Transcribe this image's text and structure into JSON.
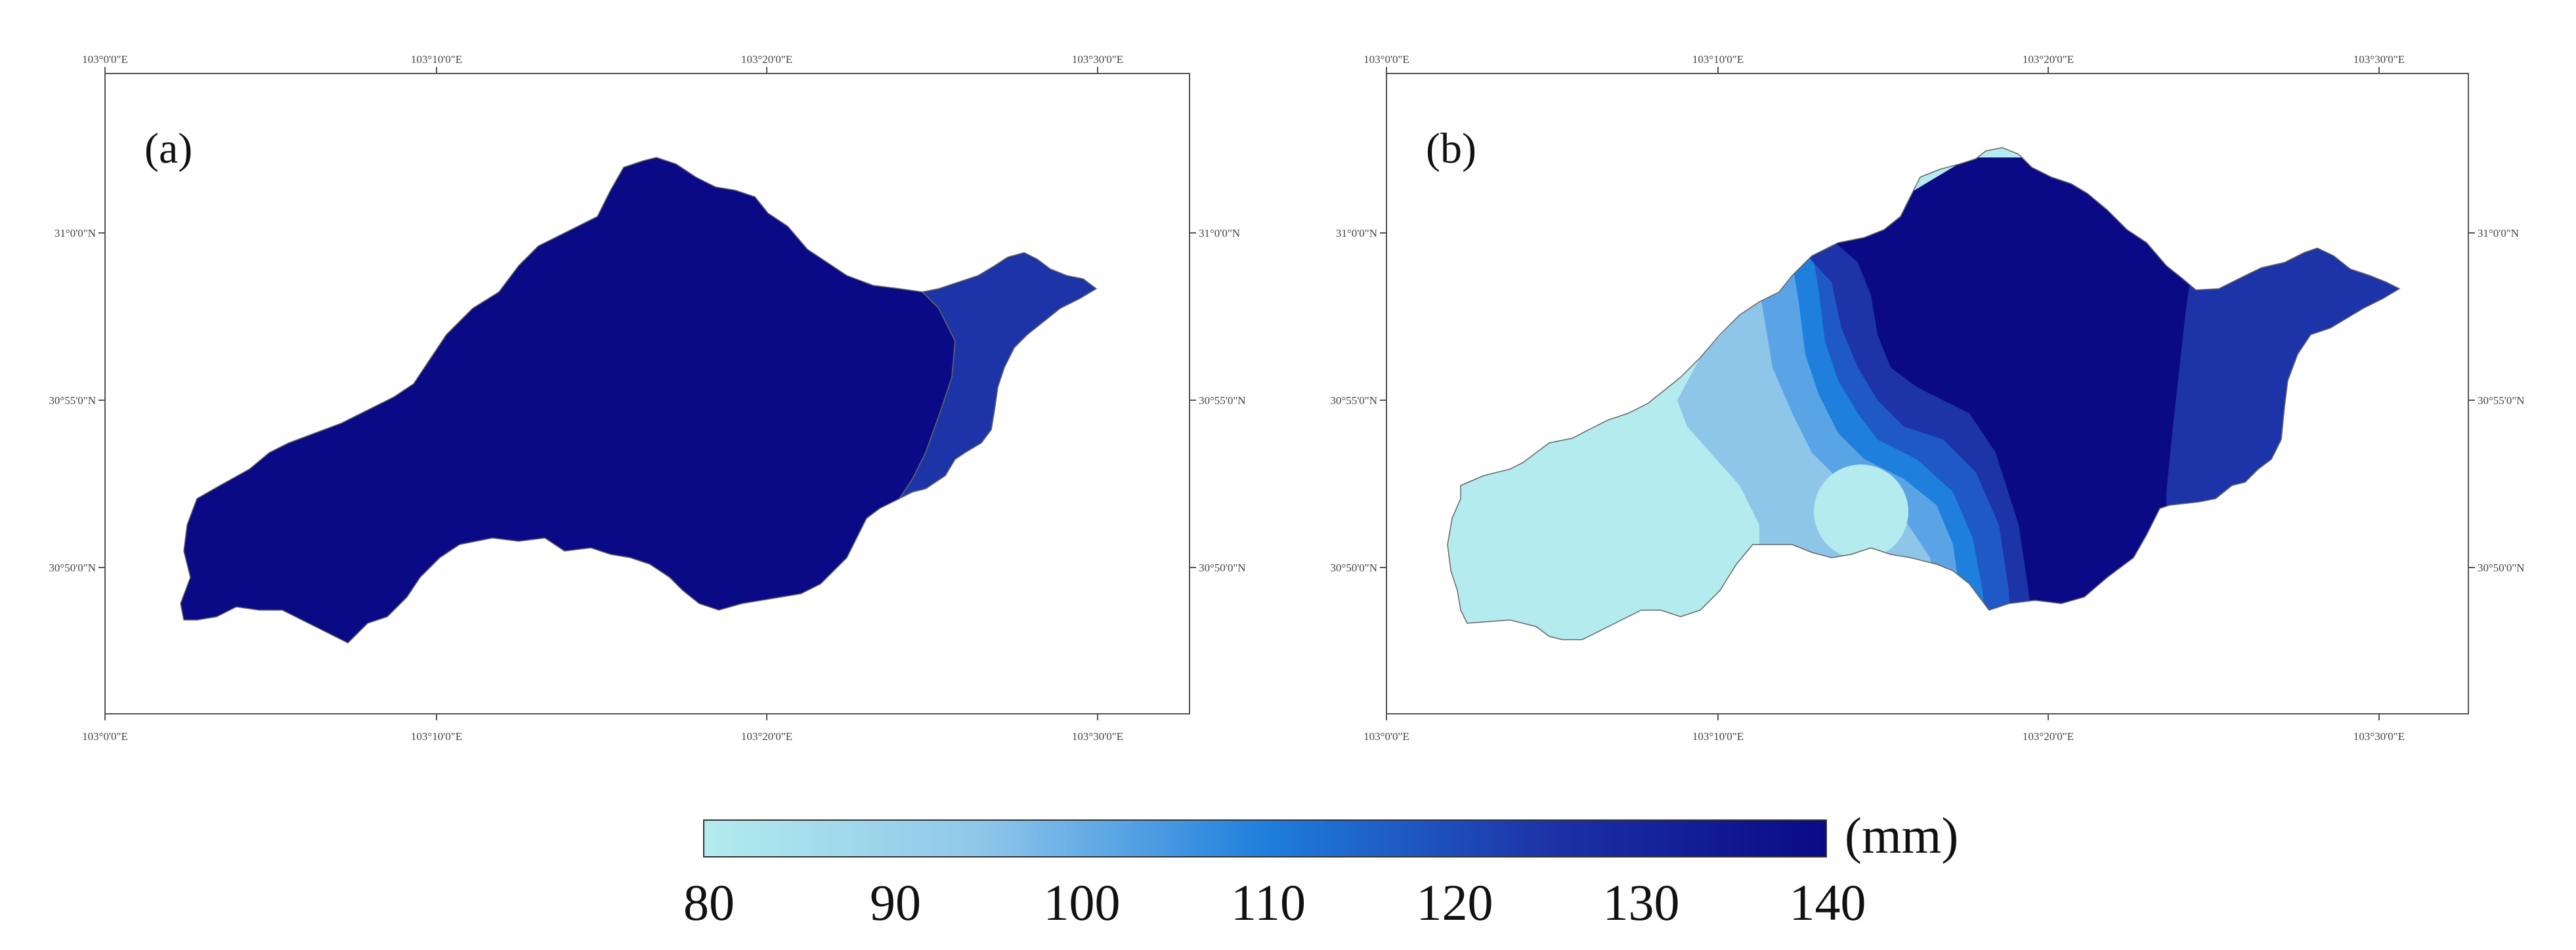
{
  "panels": [
    {
      "id": "a",
      "label": "(a)",
      "lon_ticks": [
        "103°0'0\"E",
        "103°10'0\"E",
        "103°20'0\"E",
        "103°30'0\"E"
      ],
      "lat_ticks": [
        "31°0'0\"N",
        "30°55'0\"N",
        "30°50'0\"N"
      ]
    },
    {
      "id": "b",
      "label": "(b)",
      "lon_ticks": [
        "103°0'0\"E",
        "103°10'0\"E",
        "103°20'0\"E",
        "103°30'0\"E"
      ],
      "lat_ticks": [
        "31°0'0\"N",
        "30°55'0\"N",
        "30°50'0\"N"
      ]
    }
  ],
  "colorbar": {
    "unit": "(mm)",
    "ticks": [
      "80",
      "90",
      "100",
      "110",
      "120",
      "130",
      "140"
    ],
    "min": 80,
    "max": 140,
    "colors": [
      "#b3ebee",
      "#8ec6ea",
      "#5aa4e6",
      "#1e7fdd",
      "#1f59c5",
      "#1d33a8",
      "#0a0a86"
    ]
  },
  "colors": {
    "zone_140": "#0a0a86",
    "zone_130": "#1d33a8",
    "zone_120": "#1f59c5",
    "zone_110": "#1e7fdd",
    "zone_100": "#5aa4e6",
    "zone_90": "#8ec6ea",
    "zone_80": "#b3ebee"
  }
}
